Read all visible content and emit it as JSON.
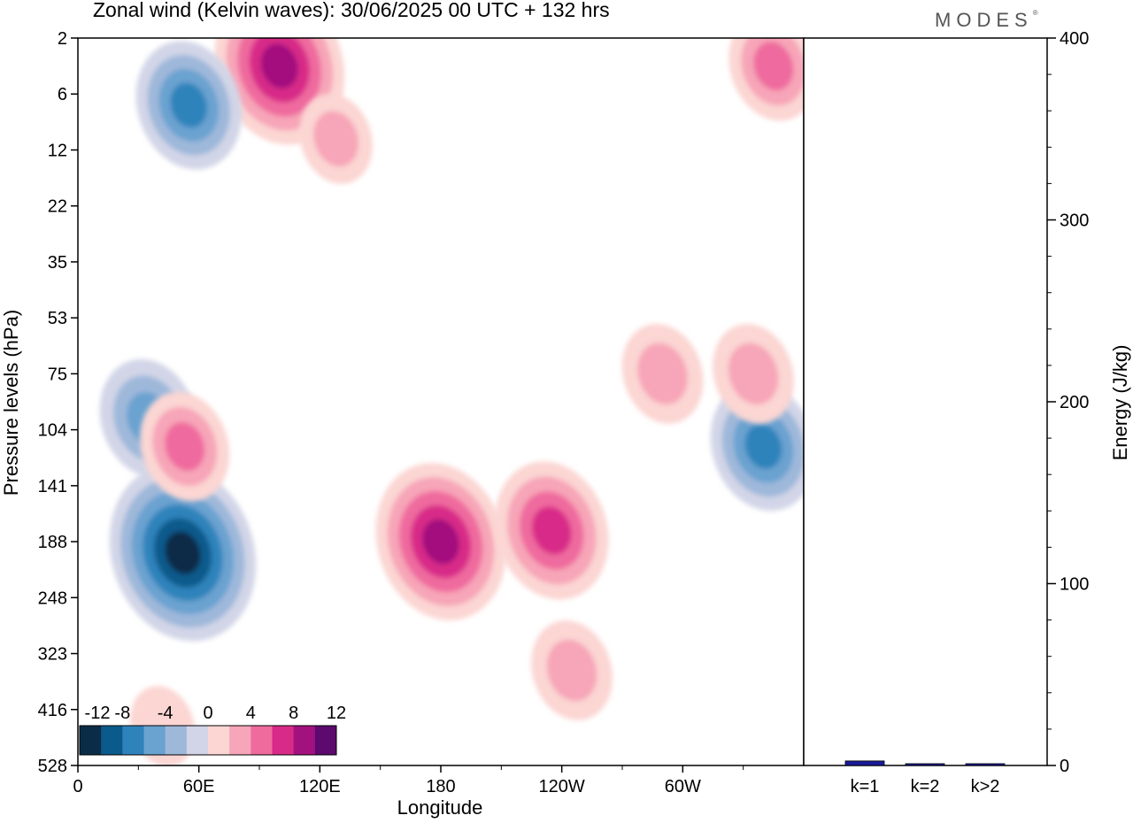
{
  "title": "Zonal wind (Kelvin waves):  30/06/2025  00 UTC  + 132 hrs",
  "brand": "MODES",
  "brand_mark": "®",
  "colors": {
    "neg": [
      "#0b2c46",
      "#0b5a8c",
      "#2f83bb",
      "#6aa2d0",
      "#9eb8da",
      "#d2d5e7"
    ],
    "pos": [
      "#fbd6d3",
      "#f7a5b8",
      "#ef6b9e",
      "#d82a88",
      "#a3117e",
      "#5c0a6d"
    ],
    "bar": "#1a1a99"
  },
  "chart_data": [
    {
      "type": "heatmap",
      "title": "Zonal wind (Kelvin waves):  30/06/2025  00 UTC  + 132 hrs",
      "xlabel": "Longitude",
      "ylabel": "Pressure levels (hPa)",
      "x_ticks": [
        "0",
        "60E",
        "120E",
        "180",
        "120W",
        "60W"
      ],
      "x_tick_lon": [
        0,
        60,
        120,
        180,
        240,
        300
      ],
      "xlim": [
        0,
        360
      ],
      "y_ticks": [
        "2",
        "6",
        "12",
        "22",
        "35",
        "53",
        "75",
        "104",
        "141",
        "188",
        "248",
        "323",
        "416",
        "528"
      ],
      "colorbar": {
        "labels": [
          "-12",
          "-8",
          "-4",
          "0",
          "4",
          "8",
          "12"
        ],
        "levels": [
          -14,
          -12,
          -10,
          -8,
          -6,
          -4,
          -2,
          2,
          4,
          6,
          8,
          10,
          12
        ]
      },
      "features": [
        {
          "lon": 52,
          "level_index": 9.2,
          "value": -13
        },
        {
          "lon": 180,
          "level_index": 9.0,
          "value": 11
        },
        {
          "lon": 235,
          "level_index": 8.8,
          "value": 9
        },
        {
          "lon": 340,
          "level_index": 7.3,
          "value": -8
        },
        {
          "lon": 35,
          "level_index": 6.8,
          "value": -7
        },
        {
          "lon": 53,
          "level_index": 7.3,
          "value": 6
        },
        {
          "lon": 290,
          "level_index": 6.0,
          "value": 5
        },
        {
          "lon": 335,
          "level_index": 6.0,
          "value": 5
        },
        {
          "lon": 100,
          "level_index": 0.5,
          "value": 11
        },
        {
          "lon": 55,
          "level_index": 1.2,
          "value": -8
        },
        {
          "lon": 345,
          "level_index": 0.5,
          "value": 6
        },
        {
          "lon": 245,
          "level_index": 11.3,
          "value": 5
        },
        {
          "lon": 42,
          "level_index": 12.3,
          "value": 3
        },
        {
          "lon": 128,
          "level_index": 1.8,
          "value": 4
        }
      ]
    },
    {
      "type": "bar",
      "ylabel": "Energy (J/kg)",
      "categories": [
        "k=1",
        "k=2",
        "k>2"
      ],
      "values": [
        2,
        0.5,
        0.5
      ],
      "ylim": [
        0,
        400
      ],
      "y_ticks": [
        "0",
        "100",
        "200",
        "300",
        "400"
      ]
    }
  ]
}
